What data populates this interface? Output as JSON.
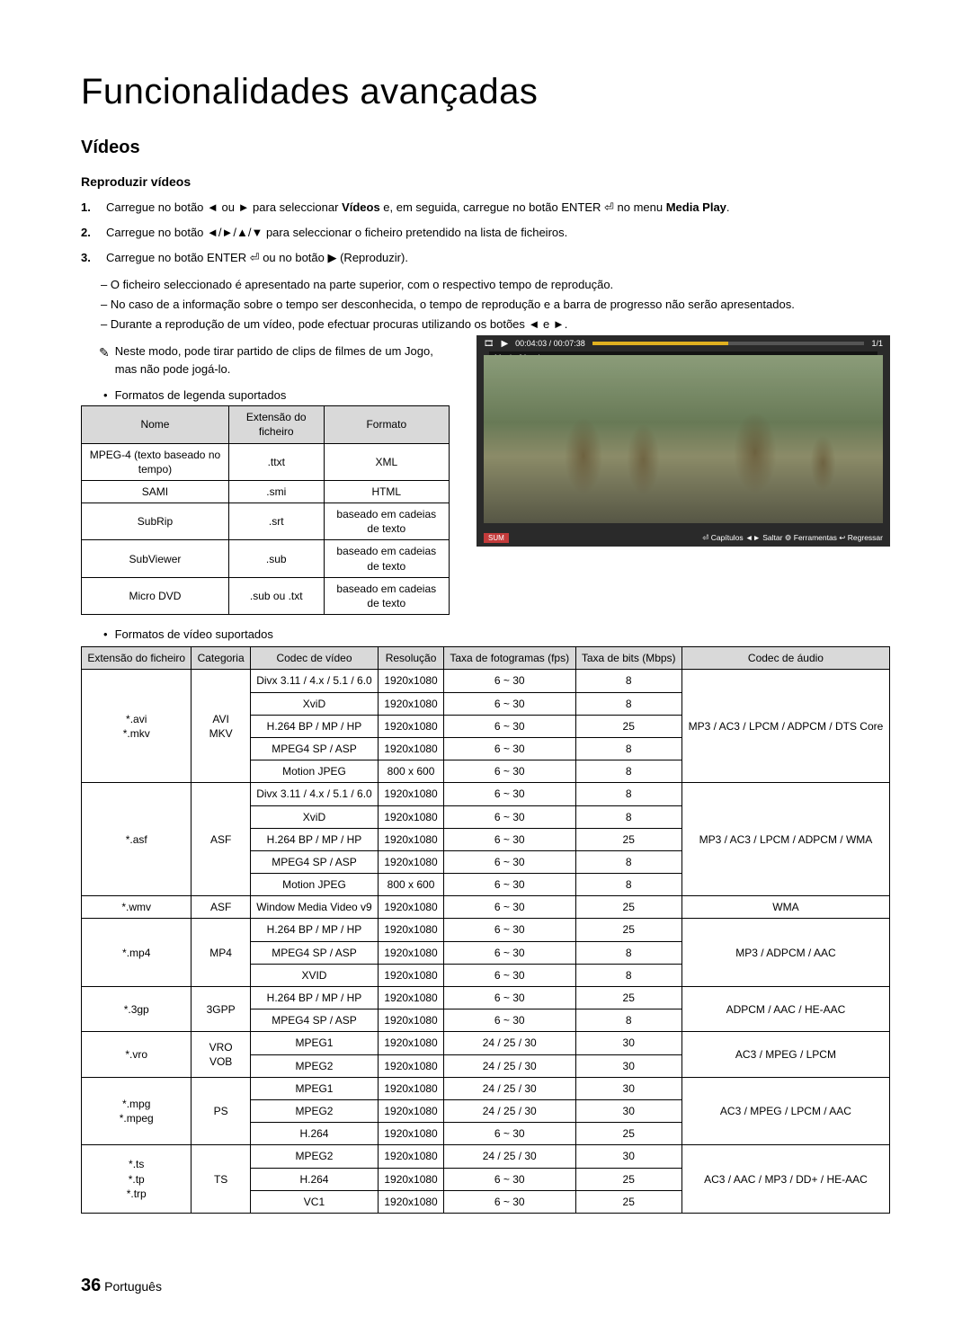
{
  "page": {
    "title": "Funcionalidades avançadas",
    "section": "Vídeos",
    "subheading": "Reproduzir vídeos",
    "page_number": "36",
    "page_lang": "Português"
  },
  "steps": [
    {
      "num": "1.",
      "text_before": "Carregue no botão ◄ ou ► para seleccionar ",
      "bold1": "Vídeos",
      "mid": " e, em seguida, carregue no botão ENTER ⏎ no menu ",
      "bold2": "Media Play",
      "after": "."
    },
    {
      "num": "2.",
      "text": "Carregue no botão ◄/►/▲/▼ para seleccionar o ficheiro pretendido na lista de ficheiros."
    },
    {
      "num": "3.",
      "text": "Carregue no botão ENTER ⏎ ou no botão ▶ (Reproduzir)."
    }
  ],
  "sub_dashes": [
    "O ficheiro seleccionado é apresentado na parte superior, com o respectivo tempo de reprodução.",
    "No caso de a informação sobre o tempo ser desconhecida, o tempo de reprodução e a barra de progresso não serão apresentados.",
    "Durante a reprodução de um vídeo, pode efectuar procuras utilizando os botões ◄ e ►."
  ],
  "note": "Neste modo, pode tirar partido de clips de filmes de um Jogo, mas não pode jogá-lo.",
  "legend_heading": "Formatos de legenda suportados",
  "legend_table": {
    "headers": [
      "Nome",
      "Extensão do ficheiro",
      "Formato"
    ],
    "rows": [
      [
        "MPEG-4 (texto baseado no tempo)",
        ".ttxt",
        "XML"
      ],
      [
        "SAMI",
        ".smi",
        "HTML"
      ],
      [
        "SubRip",
        ".srt",
        "baseado em cadeias de texto"
      ],
      [
        "SubViewer",
        ".sub",
        "baseado em cadeias de texto"
      ],
      [
        "Micro DVD",
        ".sub ou .txt",
        "baseado em cadeias de texto"
      ]
    ]
  },
  "video_player": {
    "time": "00:04:03 / 00:07:38",
    "counter": "1/1",
    "filename": "Movie 01.avi",
    "sum": "SUM",
    "toolbar": "⏎ Capítulos  ◄► Saltar  ⚙ Ferramentas  ↩ Regressar"
  },
  "video_heading": "Formatos de vídeo suportados",
  "video_table": {
    "headers": [
      "Extensão do ficheiro",
      "Categoria",
      "Codec de vídeo",
      "Resolução",
      "Taxa de fotogramas (fps)",
      "Taxa de bits (Mbps)",
      "Codec de áudio"
    ],
    "groups": [
      {
        "ext": "*.avi\n*.mkv",
        "cat": "AVI\nMKV",
        "audio": "MP3 / AC3 / LPCM / ADPCM / DTS Core",
        "rows": [
          [
            "Divx 3.11 / 4.x / 5.1 / 6.0",
            "1920x1080",
            "6 ~ 30",
            "8"
          ],
          [
            "XviD",
            "1920x1080",
            "6 ~ 30",
            "8"
          ],
          [
            "H.264 BP / MP / HP",
            "1920x1080",
            "6 ~ 30",
            "25"
          ],
          [
            "MPEG4 SP / ASP",
            "1920x1080",
            "6 ~ 30",
            "8"
          ],
          [
            "Motion JPEG",
            "800 x 600",
            "6 ~ 30",
            "8"
          ]
        ]
      },
      {
        "ext": "*.asf",
        "cat": "ASF",
        "audio": "MP3 / AC3 / LPCM / ADPCM / WMA",
        "rows": [
          [
            "Divx 3.11 / 4.x / 5.1 / 6.0",
            "1920x1080",
            "6 ~ 30",
            "8"
          ],
          [
            "XviD",
            "1920x1080",
            "6 ~ 30",
            "8"
          ],
          [
            "H.264 BP / MP / HP",
            "1920x1080",
            "6 ~ 30",
            "25"
          ],
          [
            "MPEG4 SP / ASP",
            "1920x1080",
            "6 ~ 30",
            "8"
          ],
          [
            "Motion JPEG",
            "800 x 600",
            "6 ~ 30",
            "8"
          ]
        ]
      },
      {
        "ext": "*.wmv",
        "cat": "ASF",
        "audio": "WMA",
        "rows": [
          [
            "Window Media Video v9",
            "1920x1080",
            "6 ~ 30",
            "25"
          ]
        ]
      },
      {
        "ext": "*.mp4",
        "cat": "MP4",
        "audio": "MP3 / ADPCM / AAC",
        "rows": [
          [
            "H.264 BP / MP / HP",
            "1920x1080",
            "6 ~ 30",
            "25"
          ],
          [
            "MPEG4 SP / ASP",
            "1920x1080",
            "6 ~ 30",
            "8"
          ],
          [
            "XVID",
            "1920x1080",
            "6 ~ 30",
            "8"
          ]
        ]
      },
      {
        "ext": "*.3gp",
        "cat": "3GPP",
        "audio": "ADPCM / AAC / HE-AAC",
        "rows": [
          [
            "H.264 BP / MP / HP",
            "1920x1080",
            "6 ~ 30",
            "25"
          ],
          [
            "MPEG4 SP / ASP",
            "1920x1080",
            "6 ~ 30",
            "8"
          ]
        ]
      },
      {
        "ext": "*.vro",
        "cat": "VRO\nVOB",
        "audio": "AC3 / MPEG / LPCM",
        "rows": [
          [
            "MPEG1",
            "1920x1080",
            "24 / 25 / 30",
            "30"
          ],
          [
            "MPEG2",
            "1920x1080",
            "24 / 25 / 30",
            "30"
          ]
        ]
      },
      {
        "ext": "*.mpg\n*.mpeg",
        "cat": "PS",
        "audio": "AC3 / MPEG / LPCM / AAC",
        "rows": [
          [
            "MPEG1",
            "1920x1080",
            "24 / 25 / 30",
            "30"
          ],
          [
            "MPEG2",
            "1920x1080",
            "24 / 25 / 30",
            "30"
          ],
          [
            "H.264",
            "1920x1080",
            "6 ~ 30",
            "25"
          ]
        ]
      },
      {
        "ext": "*.ts\n*.tp\n*.trp",
        "cat": "TS",
        "audio": "AC3 / AAC / MP3 / DD+ / HE-AAC",
        "rows": [
          [
            "MPEG2",
            "1920x1080",
            "24 / 25 / 30",
            "30"
          ],
          [
            "H.264",
            "1920x1080",
            "6 ~ 30",
            "25"
          ],
          [
            "VC1",
            "1920x1080",
            "6 ~ 30",
            "25"
          ]
        ]
      }
    ]
  }
}
